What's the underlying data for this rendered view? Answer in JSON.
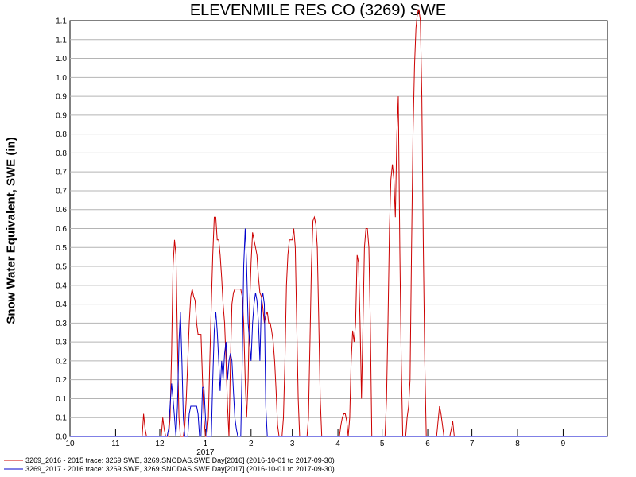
{
  "chart_data": {
    "type": "line",
    "title": "ELEVENMILE RES CO (3269) SWE",
    "ylabel": "Snow Water Equivalent, SWE (in)",
    "xlabel": "",
    "ylim": [
      0,
      1.1
    ],
    "y_tick_labels": [
      "0.0",
      "0.1",
      "0.1",
      "0.2",
      "0.2",
      "0.3",
      "0.3",
      "0.4",
      "0.4",
      "0.5",
      "0.5",
      "0.6",
      "0.6",
      "0.7",
      "0.7",
      "0.8",
      "0.8",
      "0.9",
      "0.9",
      "1.0",
      "1.0",
      "1.1",
      "1.1"
    ],
    "x_tick_labels": [
      "10",
      "11",
      "12",
      "1",
      "2",
      "3",
      "4",
      "5",
      "6",
      "7",
      "8",
      "9"
    ],
    "x_year_label": "2017",
    "grid": true,
    "legend_position": "bottom-left",
    "series": [
      {
        "name": "3269_2016 - 2015 trace: 3269 SWE, 3269.SNODAS.SWE.Day[2016] (2016-10-01 to 2017-09-30)",
        "color": "#cc0000",
        "points": [
          [
            0,
            0
          ],
          [
            49,
            0
          ],
          [
            50,
            0.06
          ],
          [
            51,
            0.02
          ],
          [
            52,
            0
          ],
          [
            62,
            0
          ],
          [
            63,
            0.05
          ],
          [
            64,
            0.02
          ],
          [
            65,
            0
          ],
          [
            67,
            0
          ],
          [
            68,
            0.05
          ],
          [
            69,
            0.22
          ],
          [
            70,
            0.45
          ],
          [
            71,
            0.52
          ],
          [
            72,
            0.48
          ],
          [
            73,
            0.25
          ],
          [
            74,
            0.05
          ],
          [
            75,
            0
          ],
          [
            77,
            0
          ],
          [
            78,
            0.03
          ],
          [
            79,
            0.1
          ],
          [
            80,
            0.2
          ],
          [
            81,
            0.3
          ],
          [
            82,
            0.37
          ],
          [
            83,
            0.39
          ],
          [
            84,
            0.37
          ],
          [
            85,
            0.36
          ],
          [
            86,
            0.3
          ],
          [
            87,
            0.27
          ],
          [
            88,
            0.27
          ],
          [
            89,
            0.27
          ],
          [
            90,
            0.15
          ],
          [
            91,
            0.05
          ],
          [
            92,
            0
          ],
          [
            93,
            0
          ],
          [
            94,
            0.05
          ],
          [
            95,
            0.2
          ],
          [
            96,
            0.35
          ],
          [
            97,
            0.48
          ],
          [
            98,
            0.58
          ],
          [
            99,
            0.58
          ],
          [
            100,
            0.52
          ],
          [
            101,
            0.52
          ],
          [
            102,
            0.48
          ],
          [
            103,
            0.42
          ],
          [
            104,
            0.35
          ],
          [
            105,
            0.3
          ],
          [
            106,
            0.2
          ],
          [
            107,
            0.08
          ],
          [
            108,
            0
          ],
          [
            109,
            0.2
          ],
          [
            110,
            0.35
          ],
          [
            111,
            0.38
          ],
          [
            112,
            0.39
          ],
          [
            113,
            0.39
          ],
          [
            114,
            0.39
          ],
          [
            115,
            0.39
          ],
          [
            116,
            0.39
          ],
          [
            117,
            0.37
          ],
          [
            118,
            0.3
          ],
          [
            119,
            0.15
          ],
          [
            120,
            0.05
          ],
          [
            121,
            0.15
          ],
          [
            122,
            0.35
          ],
          [
            123,
            0.46
          ],
          [
            124,
            0.54
          ],
          [
            125,
            0.52
          ],
          [
            126,
            0.5
          ],
          [
            127,
            0.48
          ],
          [
            128,
            0.42
          ],
          [
            129,
            0.38
          ],
          [
            130,
            0.37
          ],
          [
            131,
            0.34
          ],
          [
            132,
            0.3
          ],
          [
            133,
            0.32
          ],
          [
            134,
            0.33
          ],
          [
            135,
            0.3
          ],
          [
            136,
            0.3
          ],
          [
            137,
            0.28
          ],
          [
            138,
            0.25
          ],
          [
            139,
            0.2
          ],
          [
            140,
            0.12
          ],
          [
            141,
            0.03
          ],
          [
            142,
            0
          ],
          [
            144,
            0
          ],
          [
            145,
            0.05
          ],
          [
            146,
            0.2
          ],
          [
            147,
            0.4
          ],
          [
            148,
            0.48
          ],
          [
            149,
            0.52
          ],
          [
            150,
            0.52
          ],
          [
            151,
            0.52
          ],
          [
            152,
            0.55
          ],
          [
            153,
            0.5
          ],
          [
            154,
            0.3
          ],
          [
            155,
            0.1
          ],
          [
            156,
            0
          ],
          [
            161,
            0
          ],
          [
            162,
            0.05
          ],
          [
            163,
            0.25
          ],
          [
            164,
            0.45
          ],
          [
            165,
            0.57
          ],
          [
            166,
            0.58
          ],
          [
            167,
            0.56
          ],
          [
            168,
            0.5
          ],
          [
            169,
            0.3
          ],
          [
            170,
            0.1
          ],
          [
            171,
            0
          ],
          [
            183,
            0
          ],
          [
            184,
            0.03
          ],
          [
            185,
            0.05
          ],
          [
            186,
            0.06
          ],
          [
            187,
            0.06
          ],
          [
            188,
            0.04
          ],
          [
            189,
            0
          ],
          [
            190,
            0.05
          ],
          [
            191,
            0.2
          ],
          [
            192,
            0.28
          ],
          [
            193,
            0.25
          ],
          [
            194,
            0.3
          ],
          [
            195,
            0.48
          ],
          [
            196,
            0.46
          ],
          [
            197,
            0.3
          ],
          [
            198,
            0.1
          ],
          [
            199,
            0.3
          ],
          [
            200,
            0.5
          ],
          [
            201,
            0.55
          ],
          [
            202,
            0.55
          ],
          [
            203,
            0.5
          ],
          [
            204,
            0.3
          ],
          [
            205,
            0
          ],
          [
            214,
            0
          ],
          [
            215,
            0.1
          ],
          [
            216,
            0.3
          ],
          [
            217,
            0.55
          ],
          [
            218,
            0.68
          ],
          [
            219,
            0.72
          ],
          [
            220,
            0.68
          ],
          [
            221,
            0.58
          ],
          [
            222,
            0.8
          ],
          [
            223,
            0.9
          ],
          [
            224,
            0.5
          ],
          [
            225,
            0.2
          ],
          [
            226,
            0
          ],
          [
            228,
            0
          ],
          [
            229,
            0.05
          ],
          [
            230,
            0.08
          ],
          [
            231,
            0.15
          ],
          [
            232,
            0.5
          ],
          [
            233,
            0.8
          ],
          [
            234,
            0.98
          ],
          [
            235,
            1.08
          ],
          [
            236,
            1.12
          ],
          [
            237,
            1.13
          ],
          [
            238,
            1.1
          ],
          [
            239,
            0.9
          ],
          [
            240,
            0.5
          ],
          [
            241,
            0.2
          ],
          [
            242,
            0
          ],
          [
            249,
            0
          ],
          [
            250,
            0.04
          ],
          [
            251,
            0.08
          ],
          [
            252,
            0.06
          ],
          [
            253,
            0.03
          ],
          [
            254,
            0
          ],
          [
            258,
            0
          ],
          [
            259,
            0.02
          ],
          [
            260,
            0.04
          ],
          [
            261,
            0
          ],
          [
            365,
            0
          ]
        ]
      },
      {
        "name": "3269_2017 - 2016 trace: 3269 SWE, 3269.SNODAS.SWE.Day[2017] (2016-10-01 to 2017-09-30)",
        "color": "#0000cc",
        "points": [
          [
            0,
            0
          ],
          [
            66,
            0
          ],
          [
            67,
            0.02
          ],
          [
            68,
            0.08
          ],
          [
            69,
            0.14
          ],
          [
            70,
            0.1
          ],
          [
            71,
            0.05
          ],
          [
            72,
            0
          ],
          [
            73,
            0.08
          ],
          [
            74,
            0.25
          ],
          [
            75,
            0.33
          ],
          [
            76,
            0.2
          ],
          [
            77,
            0.05
          ],
          [
            78,
            0
          ],
          [
            80,
            0
          ],
          [
            81,
            0.06
          ],
          [
            82,
            0.08
          ],
          [
            83,
            0.08
          ],
          [
            84,
            0.08
          ],
          [
            85,
            0.08
          ],
          [
            86,
            0.08
          ],
          [
            87,
            0.06
          ],
          [
            88,
            0
          ],
          [
            89,
            0
          ],
          [
            90,
            0.13
          ],
          [
            91,
            0.13
          ],
          [
            92,
            0.05
          ],
          [
            93,
            0
          ],
          [
            96,
            0
          ],
          [
            97,
            0.15
          ],
          [
            98,
            0.28
          ],
          [
            99,
            0.33
          ],
          [
            100,
            0.28
          ],
          [
            101,
            0.2
          ],
          [
            102,
            0.12
          ],
          [
            103,
            0.2
          ],
          [
            104,
            0.15
          ],
          [
            105,
            0.22
          ],
          [
            106,
            0.25
          ],
          [
            107,
            0.15
          ],
          [
            108,
            0.2
          ],
          [
            109,
            0.22
          ],
          [
            110,
            0.2
          ],
          [
            111,
            0.12
          ],
          [
            112,
            0.05
          ],
          [
            113,
            0.02
          ],
          [
            114,
            0
          ],
          [
            116,
            0
          ],
          [
            117,
            0.2
          ],
          [
            118,
            0.45
          ],
          [
            119,
            0.55
          ],
          [
            120,
            0.45
          ],
          [
            121,
            0.3
          ],
          [
            122,
            0.25
          ],
          [
            123,
            0.2
          ],
          [
            124,
            0.3
          ],
          [
            125,
            0.35
          ],
          [
            126,
            0.38
          ],
          [
            127,
            0.36
          ],
          [
            128,
            0.3
          ],
          [
            129,
            0.2
          ],
          [
            130,
            0.36
          ],
          [
            131,
            0.38
          ],
          [
            132,
            0.35
          ],
          [
            133,
            0.08
          ],
          [
            134,
            0
          ],
          [
            365,
            0
          ]
        ]
      }
    ]
  }
}
